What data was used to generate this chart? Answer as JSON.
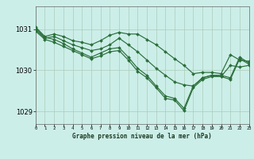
{
  "title": "Graphe pression niveau de la mer (hPa)",
  "bg_color": "#cceee8",
  "grid_color": "#aaccbb",
  "line_color": "#2a6e3a",
  "xlim": [
    0,
    23
  ],
  "ylim": [
    1028.7,
    1031.55
  ],
  "yticks": [
    1029,
    1030,
    1031
  ],
  "xticks": [
    0,
    1,
    2,
    3,
    4,
    5,
    6,
    7,
    8,
    9,
    10,
    11,
    12,
    13,
    14,
    15,
    16,
    17,
    18,
    19,
    20,
    21,
    22,
    23
  ],
  "series": [
    [
      1031.05,
      1030.82,
      1030.88,
      1030.82,
      1030.72,
      1030.68,
      1030.62,
      1030.72,
      1030.85,
      1030.92,
      1030.88,
      1030.88,
      1030.75,
      1030.62,
      1030.45,
      1030.28,
      1030.12,
      1029.92,
      1029.95,
      1029.95,
      1029.92,
      1030.38,
      1030.25,
      1030.22
    ],
    [
      1030.98,
      1030.78,
      1030.82,
      1030.72,
      1030.62,
      1030.55,
      1030.48,
      1030.52,
      1030.62,
      1030.78,
      1030.62,
      1030.45,
      1030.25,
      1030.05,
      1029.88,
      1029.72,
      1029.65,
      1029.62,
      1029.82,
      1029.88,
      1029.85,
      1030.12,
      1030.08,
      1030.12
    ],
    [
      1031.02,
      1030.8,
      1030.75,
      1030.65,
      1030.52,
      1030.42,
      1030.32,
      1030.42,
      1030.52,
      1030.55,
      1030.32,
      1030.05,
      1029.88,
      1029.62,
      1029.38,
      1029.32,
      1029.08,
      1029.62,
      1029.82,
      1029.88,
      1029.88,
      1029.82,
      1030.32,
      1030.18
    ],
    [
      1030.95,
      1030.75,
      1030.68,
      1030.58,
      1030.48,
      1030.38,
      1030.28,
      1030.35,
      1030.45,
      1030.48,
      1030.25,
      1029.98,
      1029.82,
      1029.58,
      1029.32,
      1029.28,
      1029.02,
      1029.58,
      1029.78,
      1029.85,
      1029.85,
      1029.78,
      1030.28,
      1030.15
    ]
  ]
}
